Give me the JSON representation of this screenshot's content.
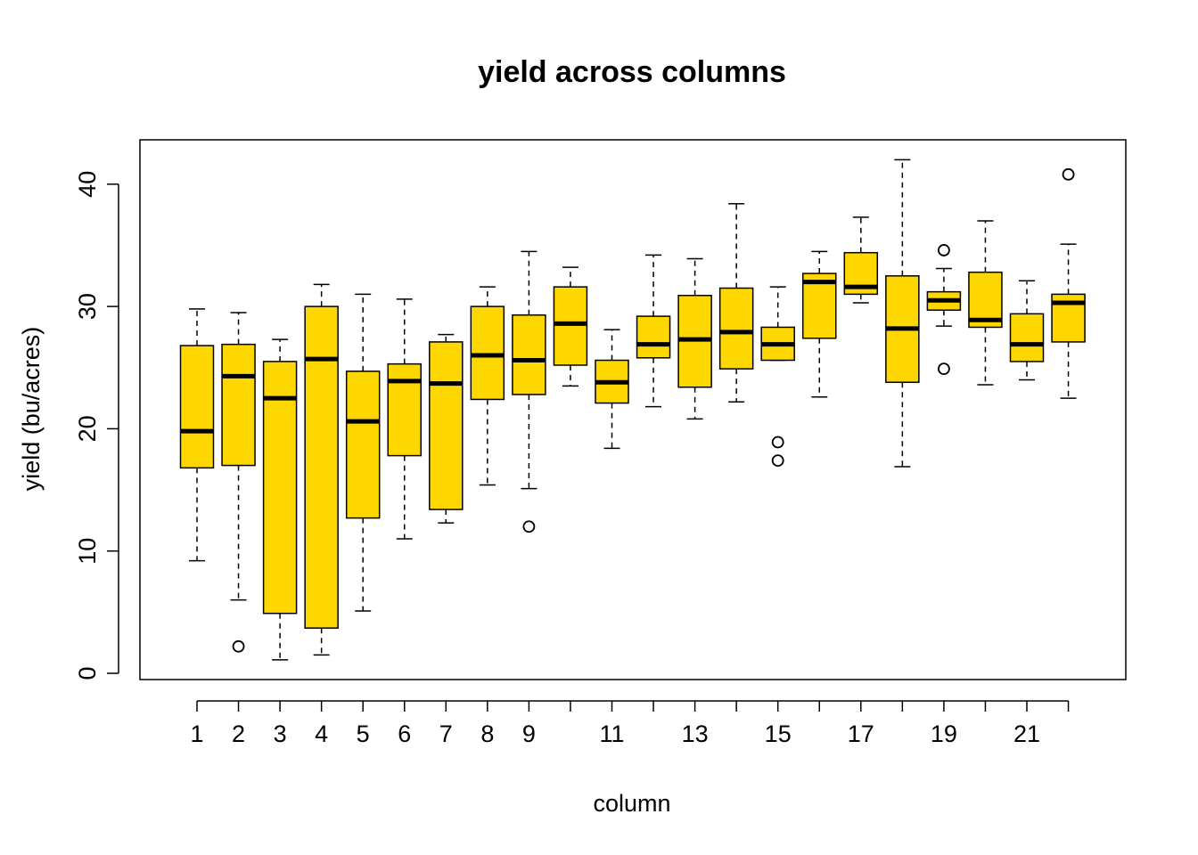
{
  "chart_data": {
    "type": "boxplot",
    "title": "yield across columns",
    "xlabel": "column",
    "ylabel": "yield (bu/acres)",
    "ylim": [
      0,
      42
    ],
    "yticks": [
      0,
      10,
      20,
      30,
      40
    ],
    "x_tick_labels": [
      "1",
      "2",
      "3",
      "4",
      "5",
      "6",
      "7",
      "8",
      "9",
      "11",
      "13",
      "15",
      "17",
      "19",
      "21"
    ],
    "box_color": "#FFD700",
    "categories": [
      1,
      2,
      3,
      4,
      5,
      6,
      7,
      8,
      9,
      10,
      11,
      12,
      13,
      14,
      15,
      16,
      17,
      18,
      19,
      20,
      21,
      22
    ],
    "boxes": [
      {
        "column": 1,
        "whisker_low": 9.2,
        "q1": 16.8,
        "median": 19.8,
        "q3": 26.8,
        "whisker_high": 29.8,
        "outliers": []
      },
      {
        "column": 2,
        "whisker_low": 6.0,
        "q1": 17.0,
        "median": 24.3,
        "q3": 26.9,
        "whisker_high": 29.5,
        "outliers": [
          2.2
        ]
      },
      {
        "column": 3,
        "whisker_low": 1.1,
        "q1": 4.9,
        "median": 22.5,
        "q3": 25.5,
        "whisker_high": 27.3,
        "outliers": []
      },
      {
        "column": 4,
        "whisker_low": 1.5,
        "q1": 3.7,
        "median": 25.7,
        "q3": 30.0,
        "whisker_high": 31.8,
        "outliers": []
      },
      {
        "column": 5,
        "whisker_low": 5.1,
        "q1": 12.7,
        "median": 20.6,
        "q3": 24.7,
        "whisker_high": 31.0,
        "outliers": []
      },
      {
        "column": 6,
        "whisker_low": 11.0,
        "q1": 17.8,
        "median": 23.9,
        "q3": 25.3,
        "whisker_high": 30.6,
        "outliers": []
      },
      {
        "column": 7,
        "whisker_low": 12.3,
        "q1": 13.4,
        "median": 23.7,
        "q3": 27.1,
        "whisker_high": 27.7,
        "outliers": []
      },
      {
        "column": 8,
        "whisker_low": 15.4,
        "q1": 22.4,
        "median": 26.0,
        "q3": 30.0,
        "whisker_high": 31.6,
        "outliers": []
      },
      {
        "column": 9,
        "whisker_low": 15.1,
        "q1": 22.8,
        "median": 25.6,
        "q3": 29.3,
        "whisker_high": 34.5,
        "outliers": [
          12.0
        ]
      },
      {
        "column": 10,
        "whisker_low": 23.5,
        "q1": 25.2,
        "median": 28.6,
        "q3": 31.6,
        "whisker_high": 33.2,
        "outliers": []
      },
      {
        "column": 11,
        "whisker_low": 18.4,
        "q1": 22.1,
        "median": 23.8,
        "q3": 25.6,
        "whisker_high": 28.1,
        "outliers": []
      },
      {
        "column": 12,
        "whisker_low": 21.8,
        "q1": 25.8,
        "median": 26.9,
        "q3": 29.2,
        "whisker_high": 34.2,
        "outliers": []
      },
      {
        "column": 13,
        "whisker_low": 20.8,
        "q1": 23.4,
        "median": 27.3,
        "q3": 30.9,
        "whisker_high": 33.9,
        "outliers": []
      },
      {
        "column": 14,
        "whisker_low": 22.2,
        "q1": 24.9,
        "median": 27.9,
        "q3": 31.5,
        "whisker_high": 38.4,
        "outliers": []
      },
      {
        "column": 15,
        "whisker_low": 25.6,
        "q1": 25.6,
        "median": 26.9,
        "q3": 28.3,
        "whisker_high": 31.6,
        "outliers": [
          18.9,
          17.4
        ]
      },
      {
        "column": 16,
        "whisker_low": 22.6,
        "q1": 27.4,
        "median": 32.0,
        "q3": 32.7,
        "whisker_high": 34.5,
        "outliers": []
      },
      {
        "column": 17,
        "whisker_low": 30.3,
        "q1": 31.0,
        "median": 31.6,
        "q3": 34.4,
        "whisker_high": 37.3,
        "outliers": []
      },
      {
        "column": 18,
        "whisker_low": 16.9,
        "q1": 23.8,
        "median": 28.2,
        "q3": 32.5,
        "whisker_high": 42.0,
        "outliers": []
      },
      {
        "column": 19,
        "whisker_low": 28.4,
        "q1": 29.7,
        "median": 30.5,
        "q3": 31.2,
        "whisker_high": 33.1,
        "outliers": [
          34.6,
          24.9
        ]
      },
      {
        "column": 20,
        "whisker_low": 23.6,
        "q1": 28.3,
        "median": 28.9,
        "q3": 32.8,
        "whisker_high": 37.0,
        "outliers": []
      },
      {
        "column": 21,
        "whisker_low": 24.0,
        "q1": 25.5,
        "median": 26.9,
        "q3": 29.4,
        "whisker_high": 32.1,
        "outliers": []
      },
      {
        "column": 22,
        "whisker_low": 22.5,
        "q1": 27.1,
        "median": 30.3,
        "q3": 31.0,
        "whisker_high": 35.1,
        "outliers": [
          40.8
        ]
      }
    ]
  }
}
